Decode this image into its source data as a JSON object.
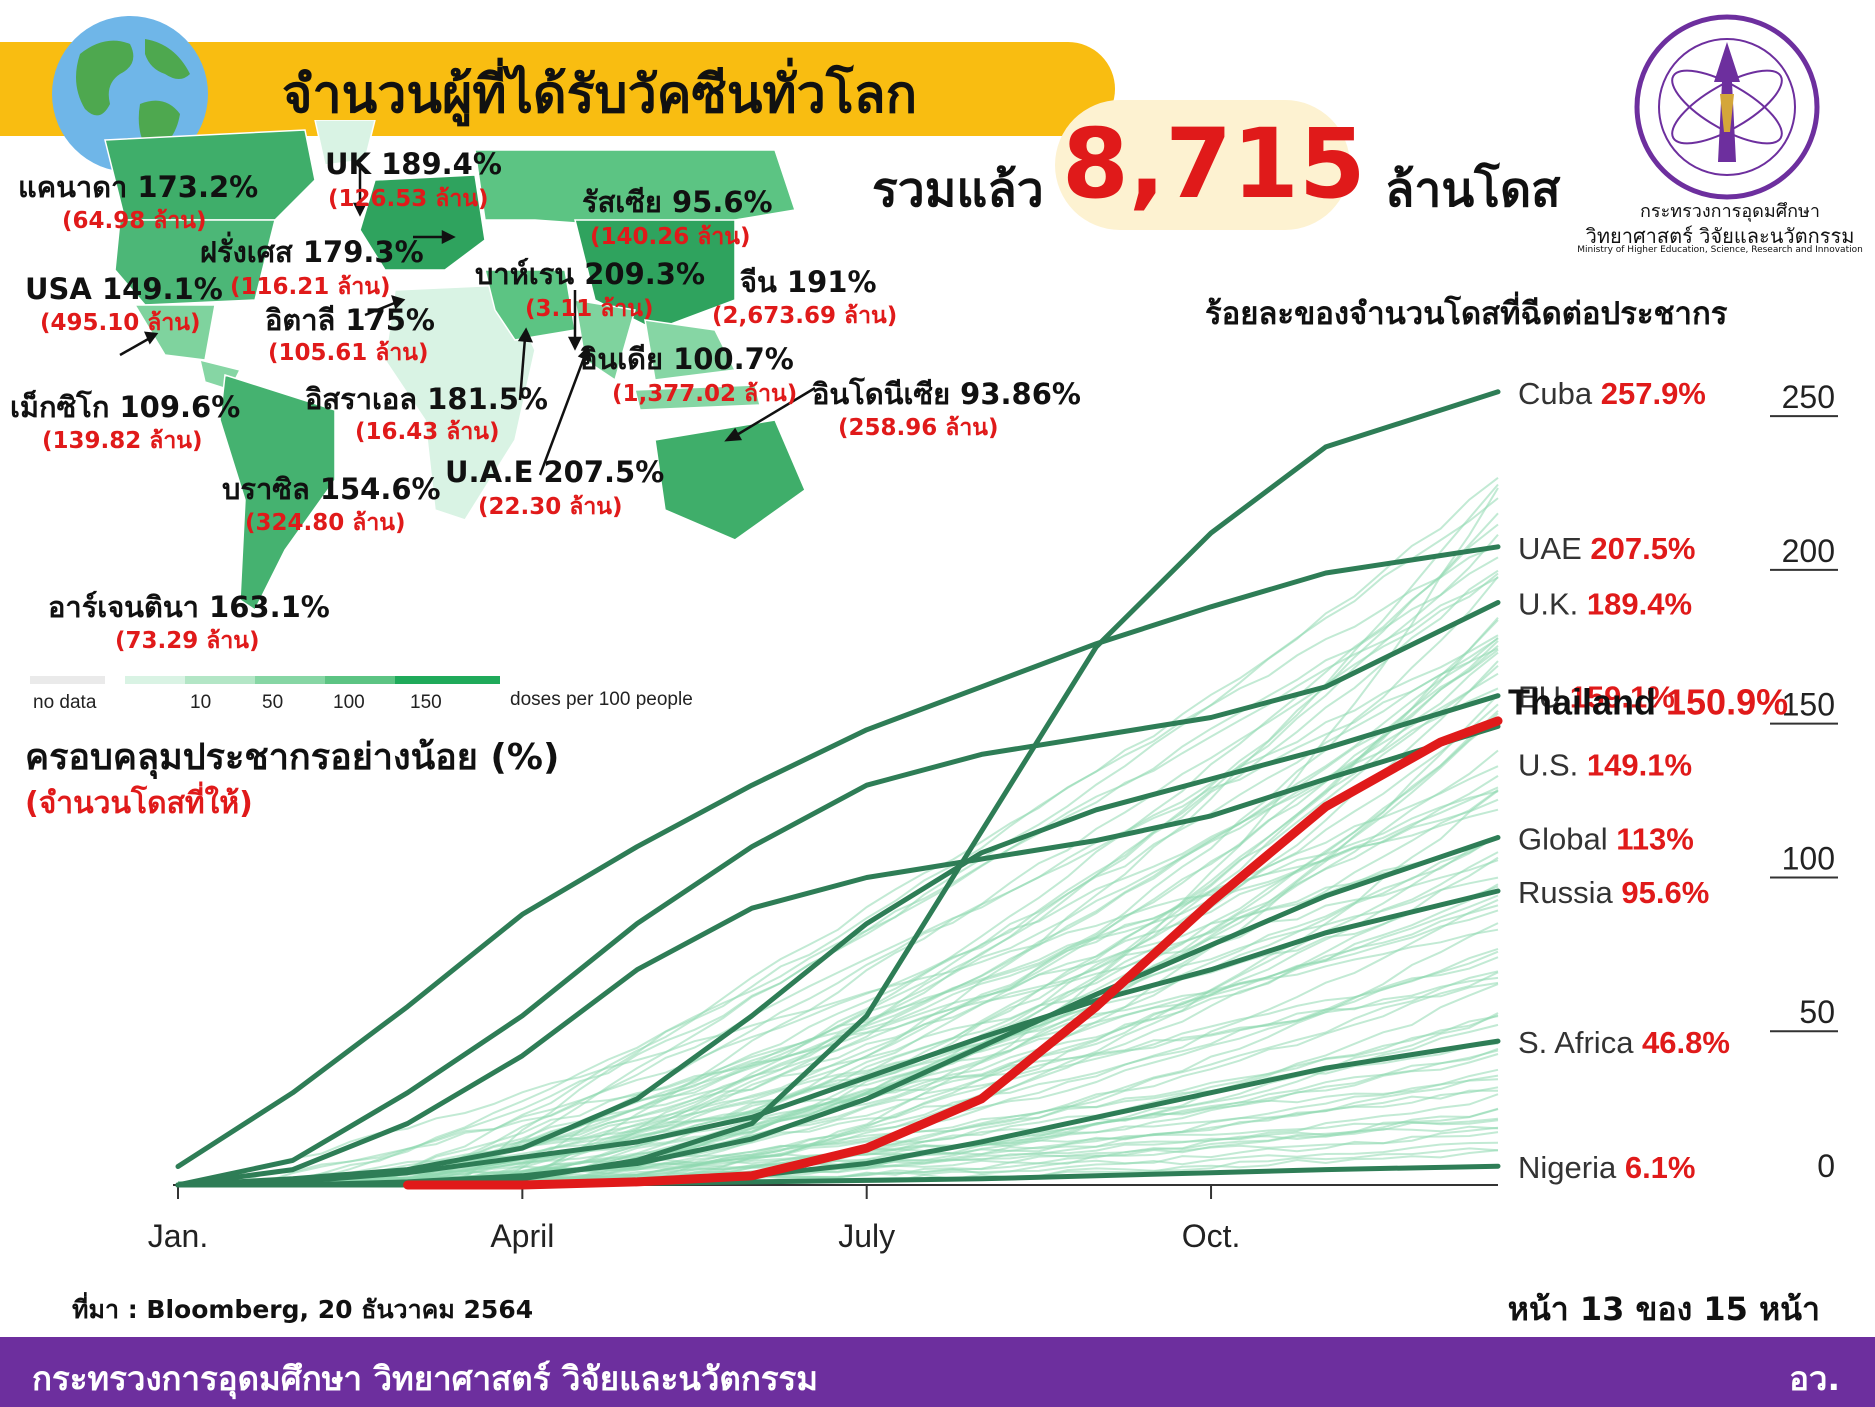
{
  "header": {
    "title": "จำนวนผู้ที่ได้รับวัคซีนทั่วโลก",
    "total_label": "รวมแล้ว",
    "total_value": "8,715",
    "total_unit": "ล้านโดส"
  },
  "logo": {
    "ministry_th": "กระทรวงการอุดมศึกษา",
    "ministry_th2": "วิทยาศาสตร์ วิจัยและนวัตกรรม",
    "ministry_en": "Ministry of Higher Education, Science, Research and Innovation"
  },
  "map": {
    "countries": [
      {
        "key": "canada",
        "name": "แคนาดา 173.2%",
        "doses": "(64.98 ล้าน)"
      },
      {
        "key": "uk",
        "name": "UK 189.4%",
        "doses": "(126.53 ล้าน)"
      },
      {
        "key": "russia",
        "name": "รัสเซีย 95.6%",
        "doses": "(140.26 ล้าน)"
      },
      {
        "key": "france",
        "name": "ฝรั่งเศส 179.3%",
        "doses": "(116.21 ล้าน)"
      },
      {
        "key": "usa",
        "name": "USA 149.1%",
        "doses": "(495.10 ล้าน)"
      },
      {
        "key": "italy",
        "name": "อิตาลี 175%",
        "doses": "(105.61 ล้าน)"
      },
      {
        "key": "bahrain",
        "name": "บาห์เรน 209.3%",
        "doses": "(3.11 ล้าน)"
      },
      {
        "key": "china",
        "name": "จีน 191%",
        "doses": "(2,673.69 ล้าน)"
      },
      {
        "key": "india",
        "name": "อินเดีย 100.7%",
        "doses": "(1,377.02 ล้าน)"
      },
      {
        "key": "indonesia",
        "name": "อินโดนีเซีย 93.86%",
        "doses": "(258.96 ล้าน)"
      },
      {
        "key": "mexico",
        "name": "เม็กซิโก 109.6%",
        "doses": "(139.82 ล้าน)"
      },
      {
        "key": "israel",
        "name": "อิสราเอล 181.5%",
        "doses": "(16.43 ล้าน)"
      },
      {
        "key": "uae",
        "name": "U.A.E 207.5%",
        "doses": "(22.30 ล้าน)"
      },
      {
        "key": "brazil",
        "name": "บราซิล 154.6%",
        "doses": "(324.80 ล้าน)"
      },
      {
        "key": "argentina",
        "name": "อาร์เจนตินา 163.1%",
        "doses": "(73.29 ล้าน)"
      }
    ],
    "legend": {
      "no_data": "no data",
      "ticks": [
        "10",
        "50",
        "100",
        "150"
      ],
      "unit": "doses per 100 people",
      "colors": [
        "#eaeaea",
        "#d9f3e4",
        "#b3e6c6",
        "#86d6a4",
        "#5cc483",
        "#1faa5a"
      ]
    }
  },
  "coverage": {
    "title": "ครอบคลุมประชากรอย่างน้อย (%)",
    "subtitle": "(จำนวนโดสที่ให้)"
  },
  "chart_data": {
    "type": "line",
    "title": "ร้อยละของจำนวนโดสที่ฉีดต่อประชากร",
    "x_ticks": [
      "Jan.",
      "April",
      "July",
      "Oct."
    ],
    "y_ticks": [
      "0",
      "50",
      "100",
      "150",
      "200",
      "250"
    ],
    "ylim": [
      0,
      265
    ],
    "y_axis_side": "right",
    "x_unit": "month of 2021",
    "series": [
      {
        "name": "Cuba",
        "label": "257.9%",
        "final": 257.9,
        "highlight": false,
        "x": [
          0,
          1,
          2,
          3,
          4,
          5,
          6,
          7,
          8,
          9,
          10,
          11.5
        ],
        "y": [
          0,
          0,
          0,
          2,
          8,
          20,
          55,
          115,
          175,
          212,
          240,
          257.9
        ]
      },
      {
        "name": "UAE",
        "label": "207.5%",
        "final": 207.5,
        "highlight": false,
        "x": [
          0,
          1,
          2,
          3,
          4,
          5,
          6,
          7,
          8,
          9,
          10,
          11.5
        ],
        "y": [
          6,
          30,
          58,
          88,
          110,
          130,
          148,
          162,
          176,
          188,
          199,
          207.5
        ]
      },
      {
        "name": "U.K.",
        "label": "189.4%",
        "final": 189.4,
        "highlight": false,
        "x": [
          0,
          1,
          2,
          3,
          4,
          5,
          6,
          7,
          8,
          9,
          10,
          11.5
        ],
        "y": [
          0,
          8,
          30,
          55,
          85,
          110,
          130,
          140,
          146,
          152,
          162,
          189.4
        ]
      },
      {
        "name": "EU",
        "label": "159.1%",
        "final": 159.1,
        "highlight": false,
        "x": [
          0,
          1,
          2,
          3,
          4,
          5,
          6,
          7,
          8,
          9,
          10,
          11.5
        ],
        "y": [
          0,
          2,
          5,
          12,
          28,
          55,
          85,
          108,
          122,
          132,
          142,
          159.1
        ]
      },
      {
        "name": "U.S.",
        "label": "149.1%",
        "final": 149.1,
        "highlight": false,
        "x": [
          0,
          1,
          2,
          3,
          4,
          5,
          6,
          7,
          8,
          9,
          10,
          11.5
        ],
        "y": [
          0,
          5,
          20,
          42,
          70,
          90,
          100,
          106,
          112,
          120,
          132,
          149.1
        ]
      },
      {
        "name": "Global",
        "label": "113%",
        "final": 113,
        "highlight": false,
        "x": [
          0,
          1,
          2,
          3,
          4,
          5,
          6,
          7,
          8,
          9,
          10,
          11.5
        ],
        "y": [
          0,
          0,
          1,
          3,
          7,
          15,
          28,
          45,
          62,
          78,
          94,
          113
        ]
      },
      {
        "name": "Russia",
        "label": "95.6%",
        "final": 95.6,
        "highlight": false,
        "x": [
          0,
          1,
          2,
          3,
          4,
          5,
          6,
          7,
          8,
          9,
          10,
          11.5
        ],
        "y": [
          0,
          1,
          4,
          9,
          14,
          22,
          35,
          48,
          60,
          70,
          82,
          95.6
        ]
      },
      {
        "name": "S. Africa",
        "label": "46.8%",
        "final": 46.8,
        "highlight": false,
        "x": [
          0,
          1,
          2,
          3,
          4,
          5,
          6,
          7,
          8,
          9,
          10,
          11.5
        ],
        "y": [
          0,
          0,
          0,
          0,
          1,
          3,
          7,
          14,
          22,
          30,
          38,
          46.8
        ]
      },
      {
        "name": "Nigeria",
        "label": "6.1%",
        "final": 6.1,
        "highlight": false,
        "x": [
          0,
          1,
          2,
          3,
          4,
          5,
          6,
          7,
          8,
          9,
          10,
          11.5
        ],
        "y": [
          0,
          0,
          0,
          0,
          0.5,
          1,
          1.5,
          2,
          3,
          4,
          5,
          6.1
        ]
      },
      {
        "name": "Thailand",
        "label": "150.9%",
        "final": 150.9,
        "highlight": true,
        "x": [
          2,
          3,
          4,
          5,
          6,
          7,
          8,
          9,
          10,
          11,
          11.5
        ],
        "y": [
          0,
          0,
          1,
          3,
          12,
          28,
          58,
          92,
          123,
          144,
          150.9
        ]
      }
    ]
  },
  "footer": {
    "source": "ที่มา : Bloomberg, 20 ธันวาคม 2564",
    "page": "หน้า 13 ของ 15 หน้า",
    "ministry": "กระทรวงการอุดมศึกษา วิทยาศาสตร์ วิจัยและนวัตกรรม",
    "abbr": "อว."
  },
  "colors": {
    "banner": "#f9bd11",
    "accent_red": "#e01a1a",
    "footer_purple": "#6d2f9e",
    "line_green_dark": "#2e7d56",
    "line_green_light": "#8fd9b0"
  }
}
